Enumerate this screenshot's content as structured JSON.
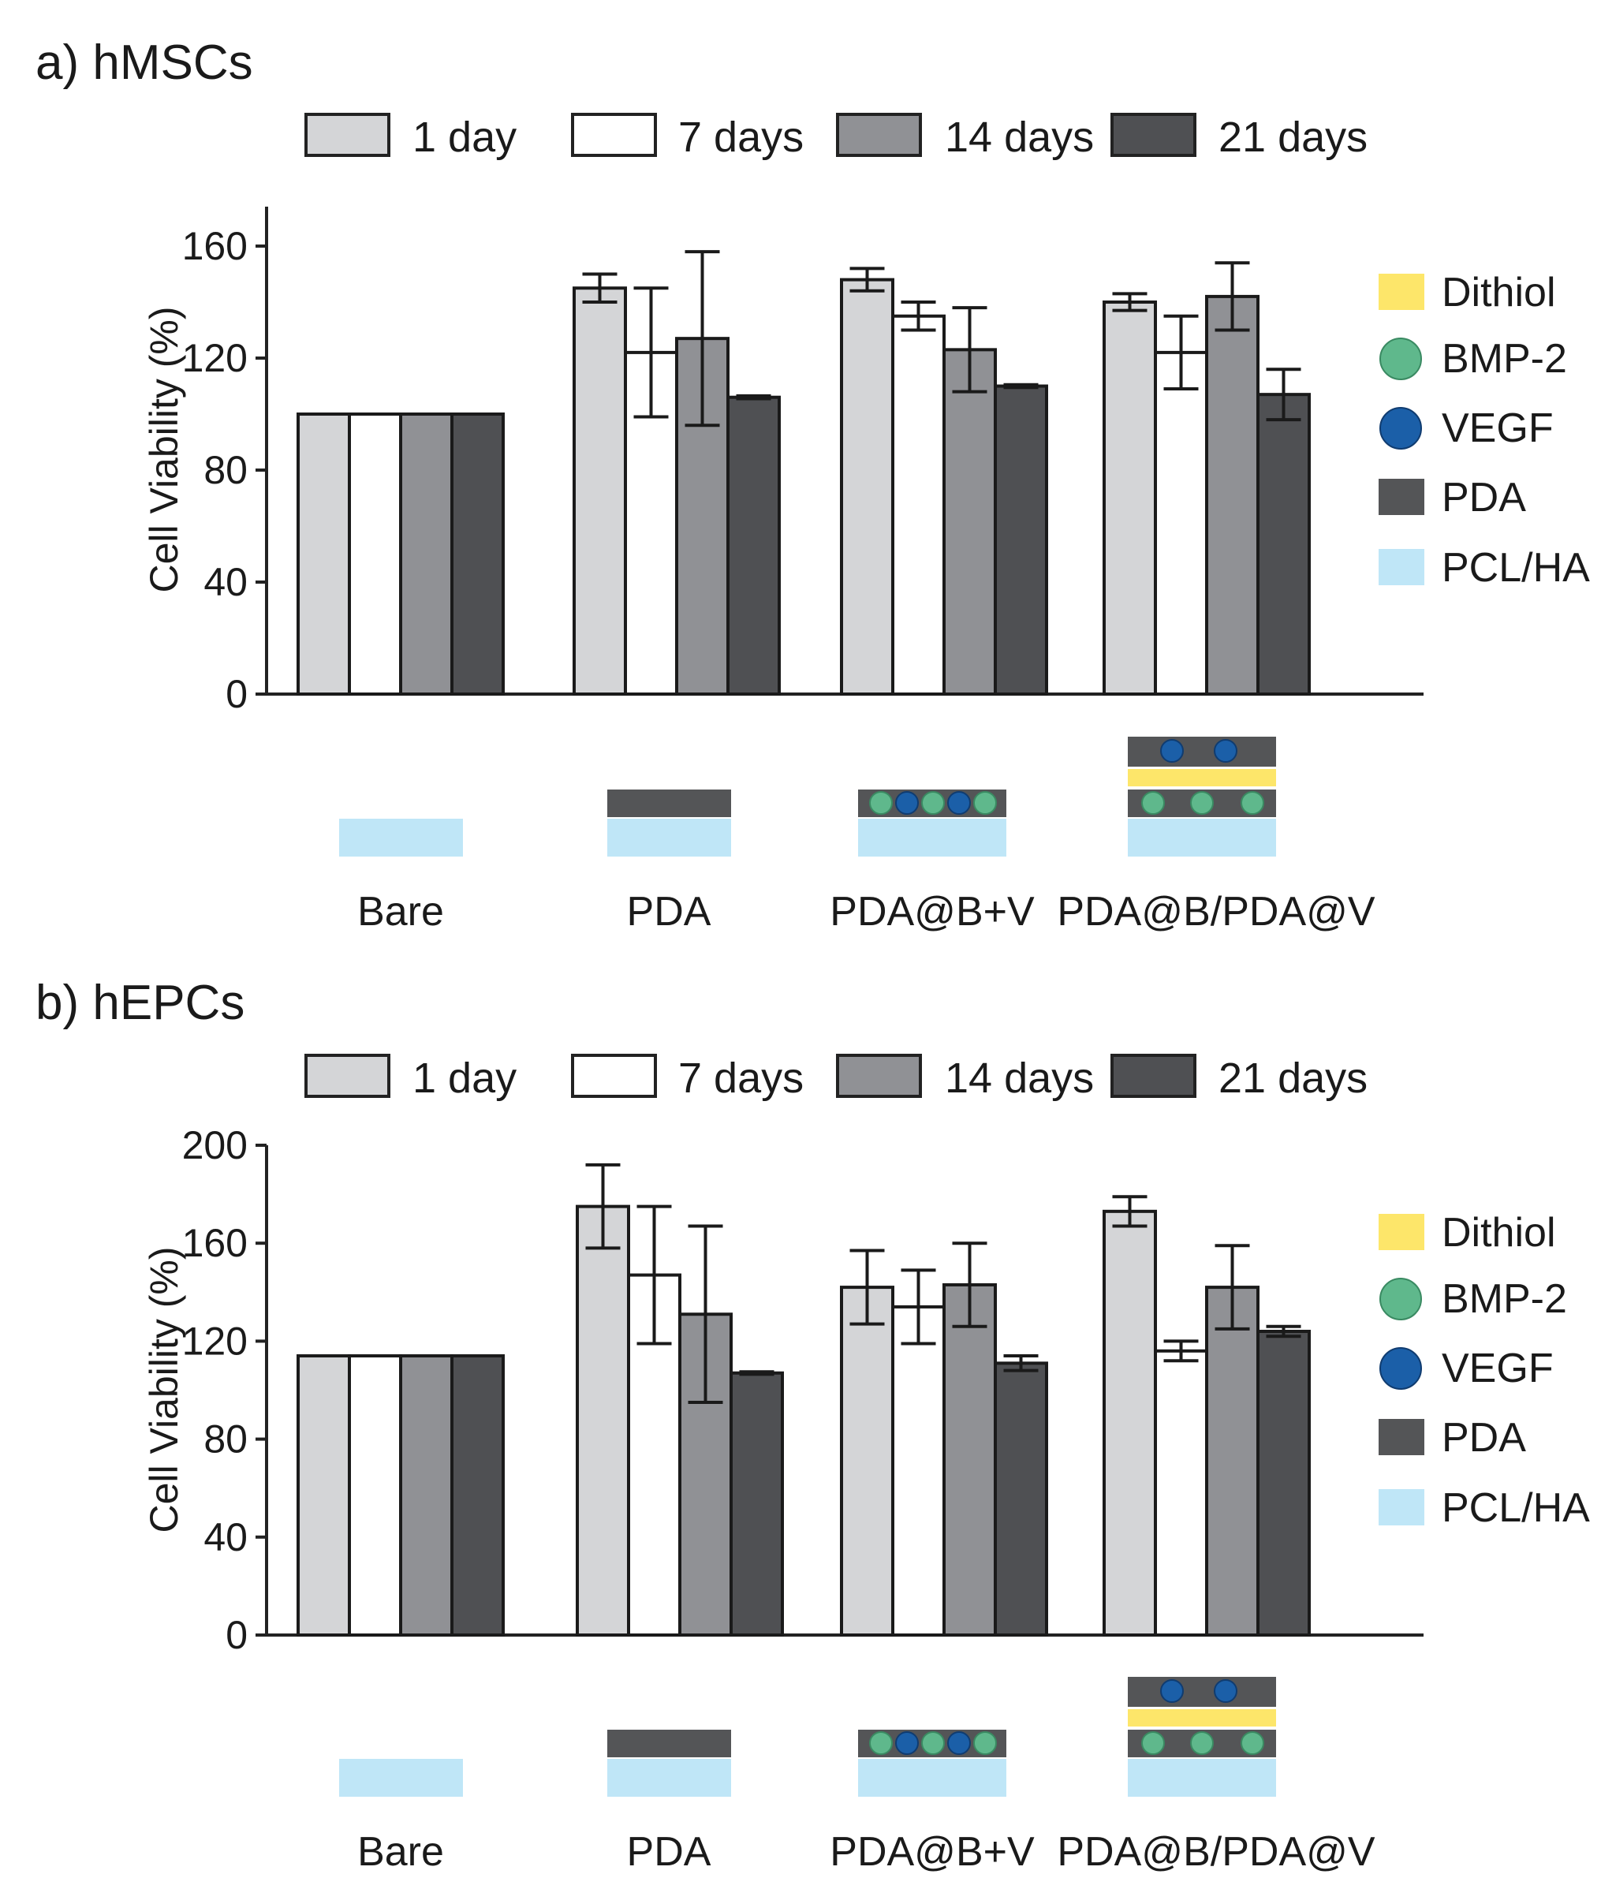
{
  "colors": {
    "day1": "#d4d5d7",
    "day7": "#ffffff",
    "day14": "#909195",
    "day21": "#4f5053",
    "dithiol": "#fde66a",
    "bmp2": "#5fb88c",
    "vegf": "#1b5fa8",
    "pda": "#545557",
    "pclha": "#bfe6f7"
  },
  "chart_data": [
    {
      "type": "bar",
      "title": "a) hMSCs",
      "xlabel": "",
      "ylabel": "Cell Viability (%)",
      "ylim": [
        0,
        170
      ],
      "yticks": [
        "0",
        "40",
        "80",
        "120",
        "160"
      ],
      "categories": [
        "Bare",
        "PDA",
        "PDA@B+V",
        "PDA@B/PDA@V"
      ],
      "series": [
        {
          "name": "1 day",
          "values": [
            100,
            145,
            148,
            140
          ],
          "errors": [
            0,
            5,
            4,
            3
          ]
        },
        {
          "name": "7 days",
          "values": [
            100,
            122,
            135,
            122
          ],
          "errors": [
            0,
            23,
            5,
            13
          ]
        },
        {
          "name": "14 days",
          "values": [
            100,
            127,
            123,
            142
          ],
          "errors": [
            0,
            31,
            15,
            12
          ]
        },
        {
          "name": "21 days",
          "values": [
            100,
            106,
            110,
            107
          ],
          "errors": [
            0,
            0.5,
            0.5,
            9
          ]
        }
      ]
    },
    {
      "type": "bar",
      "title": "b) hEPCs",
      "xlabel": "",
      "ylabel": "Cell Viability (%)",
      "ylim": [
        0,
        200
      ],
      "yticks": [
        "0",
        "40",
        "80",
        "120",
        "160",
        "200"
      ],
      "categories": [
        "Bare",
        "PDA",
        "PDA@B+V",
        "PDA@B/PDA@V"
      ],
      "series": [
        {
          "name": "1 day",
          "values": [
            114,
            175,
            142,
            173
          ],
          "errors": [
            0,
            17,
            15,
            6
          ]
        },
        {
          "name": "7 days",
          "values": [
            114,
            147,
            134,
            116
          ],
          "errors": [
            0,
            28,
            15,
            4
          ]
        },
        {
          "name": "14 days",
          "values": [
            114,
            131,
            143,
            142
          ],
          "errors": [
            0,
            36,
            17,
            17
          ]
        },
        {
          "name": "21 days",
          "values": [
            114,
            107,
            111,
            124
          ],
          "errors": [
            0,
            0.5,
            3,
            2
          ]
        }
      ]
    }
  ],
  "components": [
    "Dithiol",
    "BMP-2",
    "VEGF",
    "PDA",
    "PCL/HA"
  ]
}
